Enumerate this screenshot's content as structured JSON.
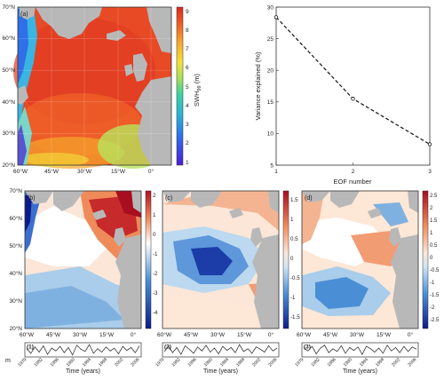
{
  "colors": {
    "land": "#b8b8b8",
    "frame": "#333333",
    "line": "#222222"
  },
  "panels": {
    "a": {
      "label": "(a)",
      "cbar_label": "SWH",
      "cbar_sub": "99",
      "cbar_unit": " (m)",
      "cbar_ticks": [
        "1",
        "2",
        "3",
        "4",
        "5",
        "6",
        "7",
        "8",
        "9"
      ],
      "lat_ticks": [
        "70°N",
        "60°N",
        "50°N",
        "40°N",
        "30°N",
        "20°N"
      ],
      "lon_ticks": [
        "60°W",
        "45°W",
        "30°W",
        "15°W",
        "0°"
      ]
    },
    "b": {
      "label": "(b)",
      "cbar_ticks": [
        "2",
        "1",
        "0",
        "-1",
        "-2",
        "-3",
        "-4"
      ],
      "lat_ticks": [
        "70°N",
        "60°N",
        "50°N",
        "40°N",
        "30°N",
        "20°N"
      ],
      "lon_ticks": [
        "60°W",
        "45°W",
        "30°W",
        "15°W",
        "0°"
      ]
    },
    "c": {
      "label": "(c)",
      "cbar_ticks": [
        "1.5",
        "1",
        "0.5",
        "0",
        "-0.5",
        "-1",
        "-1.5"
      ],
      "lon_ticks": [
        "60°W",
        "45°W",
        "30°W",
        "15°W",
        "0°"
      ]
    },
    "d": {
      "label": "(d)",
      "cbar_ticks": [
        "2.5",
        "2",
        "1.5",
        "1",
        "0.5",
        "0",
        "-0.5",
        "-1",
        "-1.5",
        "-2",
        "-2.5"
      ],
      "lon_ticks": [
        "60°W",
        "45°W",
        "30°W",
        "15°W",
        "0°"
      ]
    }
  },
  "pcs": {
    "ylabel": "m",
    "xlabel": "Time (years)",
    "year_ticks": [
      "1979",
      "1982",
      "1986",
      "1990",
      "1994",
      "1998",
      "2002",
      "2006"
    ],
    "items": [
      {
        "label": "(1)",
        "values": [
          0.2,
          -0.6,
          0.5,
          -0.4,
          0.7,
          -0.8,
          0.3,
          -0.2,
          0.6,
          -0.5,
          0.4,
          -0.9,
          0.8,
          0.1,
          -0.3,
          0.9,
          -0.6,
          0.2,
          -0.4,
          0.5,
          -0.2,
          0.3,
          -0.7,
          0.6,
          -0.1,
          0.4,
          -0.5,
          0.7
        ]
      },
      {
        "label": "(2)",
        "values": [
          -0.3,
          0.6,
          -0.5,
          0.4,
          -0.8,
          0.7,
          0.1,
          -0.6,
          0.5,
          -0.2,
          0.8,
          -0.4,
          0.3,
          -0.7,
          0.6,
          -0.1,
          0.4,
          -0.5,
          0.9,
          -0.3,
          0.2,
          -0.6,
          0.5,
          0.1,
          -0.4,
          0.7,
          -0.2,
          0.3
        ]
      },
      {
        "label": "(3)",
        "values": [
          0.4,
          -0.2,
          0.6,
          -0.7,
          0.3,
          0.8,
          -0.5,
          0.2,
          -0.3,
          0.7,
          -0.6,
          0.4,
          -0.1,
          0.5,
          -0.8,
          0.6,
          0.2,
          -0.4,
          0.3,
          -0.6,
          0.8,
          -0.2,
          0.4,
          -0.5,
          0.6,
          -0.3,
          0.5,
          0.1
        ]
      }
    ]
  },
  "chart_data": {
    "type": "line",
    "x": [
      1,
      2,
      3
    ],
    "values": [
      28.4,
      15.5,
      8.3
    ],
    "xlabel": "EOF number",
    "ylabel": "Variance explained (%)",
    "xlim": [
      1,
      3
    ],
    "ylim": [
      5,
      30
    ],
    "yticks": [
      "5",
      "10",
      "15",
      "20",
      "25",
      "30"
    ],
    "xticks": [
      "1",
      "2",
      "3"
    ]
  }
}
